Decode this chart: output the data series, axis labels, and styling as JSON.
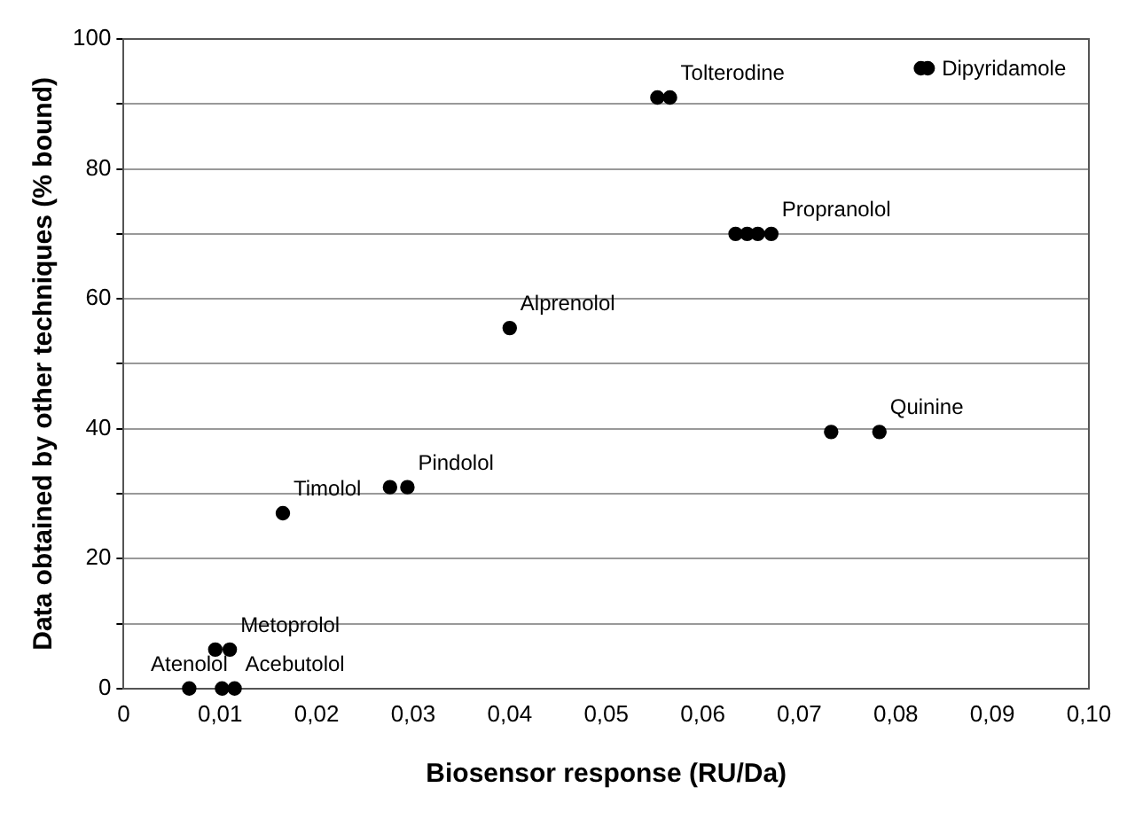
{
  "chart_data": {
    "type": "scatter",
    "xlabel": "Biosensor response (RU/Da)",
    "ylabel": "Data obtained by other techniques (% bound)",
    "series": [
      {
        "color": "#000000",
        "x": [
          0.0068,
          0.0102,
          0.0115,
          0.0095,
          0.011,
          0.0165,
          0.0276,
          0.0294,
          0.04,
          0.0553,
          0.0566,
          0.0634,
          0.0646,
          0.0657,
          0.0671,
          0.0826,
          0.0833,
          0.0733,
          0.0783
        ],
        "values": [
          0,
          0,
          0,
          6,
          6,
          27,
          31,
          31,
          55.5,
          91,
          91,
          70,
          70,
          70,
          70,
          95.5,
          95.5,
          39.5,
          39.5
        ]
      }
    ],
    "xlim": [
      0,
      0.1
    ],
    "ylim": [
      0,
      100
    ],
    "xticks": [
      0,
      {
        "value": 0.01,
        "label": "0,01"
      },
      {
        "value": 0.02,
        "label": "0,02"
      },
      {
        "value": 0.03,
        "label": "0,03"
      },
      {
        "value": 0.04,
        "label": "0,04"
      },
      {
        "value": 0.05,
        "label": "0,05"
      },
      {
        "value": 0.06,
        "label": "0,06"
      },
      {
        "value": 0.07,
        "label": "0,07"
      },
      {
        "value": 0.08,
        "label": "0,08"
      },
      {
        "value": 0.09,
        "label": "0,09"
      },
      {
        "value": 0.1,
        "label": "0,10"
      }
    ],
    "yticks": [
      0,
      {
        "value": 10,
        "label": null
      },
      20,
      {
        "value": 30,
        "label": null
      },
      40,
      {
        "value": 50,
        "label": null
      },
      60,
      {
        "value": 70,
        "label": null
      },
      80,
      {
        "value": 90,
        "label": null
      },
      100
    ],
    "grid": "y",
    "marker": "circle",
    "legend": false,
    "annotations": [
      {
        "text": "Acebutolol",
        "x": 0.0115,
        "y": 0
      },
      {
        "text": "Atenolol",
        "x": 0.0068,
        "y": 0
      },
      {
        "text": "Metoprolol",
        "x": 0.011,
        "y": 6
      },
      {
        "text": "Timolol",
        "x": 0.0165,
        "y": 27
      },
      {
        "text": "Pindolol",
        "x": 0.0294,
        "y": 31
      },
      {
        "text": "Alprenolol",
        "x": 0.04,
        "y": 55.5
      },
      {
        "text": "Tolterodine",
        "x": 0.0566,
        "y": 91
      },
      {
        "text": "Propranolol",
        "x": 0.0671,
        "y": 70
      },
      {
        "text": "Dipyridamole",
        "x": 0.0833,
        "y": 95.5
      },
      {
        "text": "Quinine",
        "x": 0.0783,
        "y": 39.5
      }
    ]
  }
}
